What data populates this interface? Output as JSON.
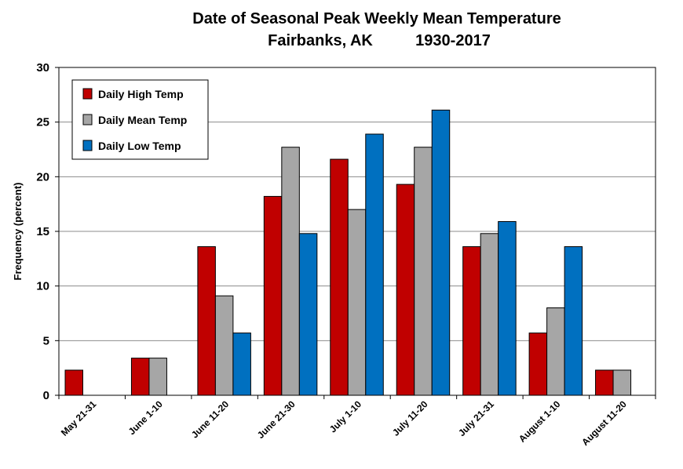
{
  "chart_data": {
    "type": "bar",
    "title_line1": "Date of Seasonal Peak Weekly Mean Temperature",
    "title_location": "Fairbanks, AK",
    "title_years": "1930-2017",
    "ylabel": "Frequency (percent)",
    "xlabel": "",
    "ylim": [
      0,
      30
    ],
    "yticks": [
      "0",
      "5",
      "10",
      "15",
      "20",
      "25",
      "30"
    ],
    "grid": true,
    "legend_position": "top-left",
    "categories": [
      "May 21-31",
      "June 1-10",
      "June 11-20",
      "June 21-30",
      "July 1-10",
      "July 11-20",
      "July 21-31",
      "August 1-10",
      "August 11-20"
    ],
    "series": [
      {
        "name": "Daily High Temp",
        "color": "#c00000",
        "values": [
          2.3,
          3.4,
          13.6,
          18.2,
          21.6,
          19.3,
          13.6,
          5.7,
          2.3
        ]
      },
      {
        "name": "Daily Mean Temp",
        "color": "#a6a6a6",
        "values": [
          0,
          3.4,
          9.1,
          22.7,
          17.0,
          22.7,
          14.8,
          8.0,
          2.3
        ]
      },
      {
        "name": "Daily Low Temp",
        "color": "#0070c0",
        "values": [
          0,
          0,
          5.7,
          14.8,
          23.9,
          26.1,
          15.9,
          13.6,
          0
        ]
      }
    ]
  }
}
